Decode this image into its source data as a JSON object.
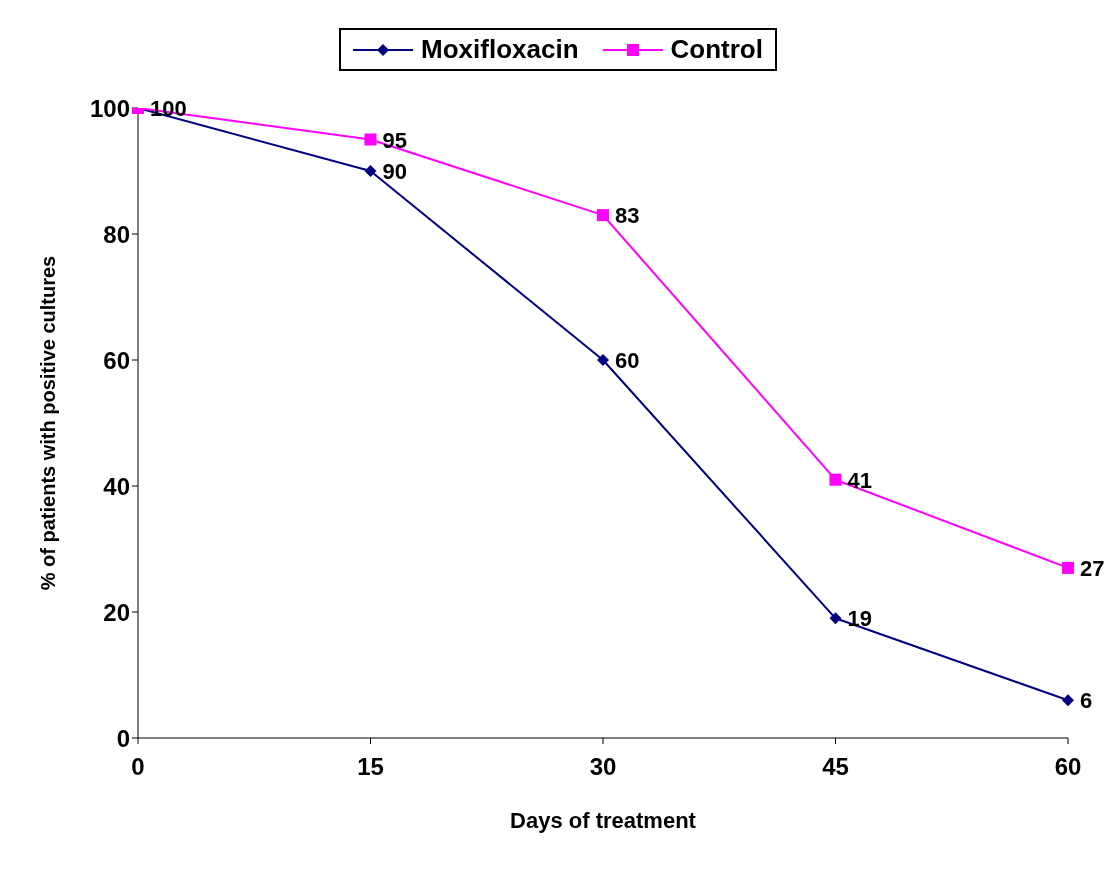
{
  "chart_data": {
    "type": "line",
    "xlabel": "Days of treatment",
    "ylabel": "% of patients with positive cultures",
    "categories": [
      "0",
      "15",
      "30",
      "45",
      "60"
    ],
    "series": [
      {
        "name": "Moxifloxacin",
        "color": "#000080",
        "marker": "diamond",
        "values": [
          100,
          90,
          60,
          19,
          6
        ],
        "value_labels": [
          null,
          "90",
          "60",
          "19",
          "6"
        ]
      },
      {
        "name": "Control",
        "color": "#ff00ff",
        "marker": "square",
        "values": [
          100,
          95,
          83,
          41,
          27
        ],
        "value_labels": [
          "100",
          "95",
          "83",
          "41",
          "27"
        ]
      }
    ],
    "ylim": [
      0,
      100
    ],
    "yticks": [
      0,
      20,
      40,
      60,
      80,
      100
    ],
    "grid": false,
    "legend": "top"
  }
}
